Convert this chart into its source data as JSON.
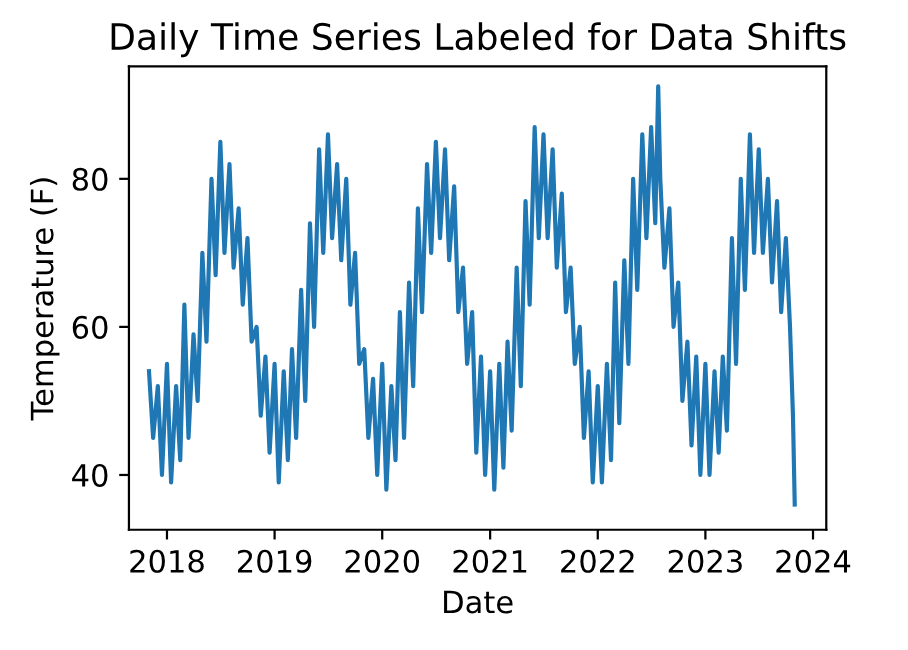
{
  "chart_data": {
    "type": "line",
    "title": "Daily Time Series Labeled for Data Shifts",
    "xlabel": "Date",
    "ylabel": "Temperature (F)",
    "xlim": [
      "2017-08-25",
      "2024-02-15"
    ],
    "ylim": [
      32.6,
      95.2
    ],
    "xticks": [
      "2018",
      "2019",
      "2020",
      "2021",
      "2022",
      "2023",
      "2024"
    ],
    "yticks": [
      40,
      60,
      80
    ],
    "grid": false,
    "series": [
      {
        "color": "#1f77b4",
        "x": [
          "2017-11-01",
          "2017-11-15",
          "2017-12-01",
          "2017-12-15",
          "2018-01-01",
          "2018-01-15",
          "2018-02-01",
          "2018-02-15",
          "2018-03-01",
          "2018-03-15",
          "2018-04-01",
          "2018-04-15",
          "2018-05-01",
          "2018-05-15",
          "2018-06-01",
          "2018-06-15",
          "2018-07-01",
          "2018-07-15",
          "2018-08-01",
          "2018-08-15",
          "2018-09-01",
          "2018-09-15",
          "2018-10-01",
          "2018-10-15",
          "2018-11-01",
          "2018-11-15",
          "2018-12-01",
          "2018-12-15",
          "2019-01-01",
          "2019-01-15",
          "2019-02-01",
          "2019-02-15",
          "2019-03-01",
          "2019-03-15",
          "2019-04-01",
          "2019-04-15",
          "2019-05-01",
          "2019-05-15",
          "2019-06-01",
          "2019-06-15",
          "2019-07-01",
          "2019-07-15",
          "2019-08-01",
          "2019-08-15",
          "2019-09-01",
          "2019-09-15",
          "2019-10-01",
          "2019-10-15",
          "2019-11-01",
          "2019-11-15",
          "2019-12-01",
          "2019-12-15",
          "2020-01-01",
          "2020-01-15",
          "2020-02-01",
          "2020-02-15",
          "2020-03-01",
          "2020-03-15",
          "2020-04-01",
          "2020-04-15",
          "2020-05-01",
          "2020-05-15",
          "2020-06-01",
          "2020-06-15",
          "2020-07-01",
          "2020-07-15",
          "2020-08-01",
          "2020-08-15",
          "2020-09-01",
          "2020-09-15",
          "2020-10-01",
          "2020-10-15",
          "2020-11-01",
          "2020-11-15",
          "2020-12-01",
          "2020-12-15",
          "2021-01-01",
          "2021-01-15",
          "2021-02-01",
          "2021-02-15",
          "2021-03-01",
          "2021-03-15",
          "2021-04-01",
          "2021-04-15",
          "2021-05-01",
          "2021-05-15",
          "2021-06-01",
          "2021-06-15",
          "2021-07-01",
          "2021-07-15",
          "2021-08-01",
          "2021-08-15",
          "2021-09-01",
          "2021-09-15",
          "2021-10-01",
          "2021-10-15",
          "2021-11-01",
          "2021-11-15",
          "2021-12-01",
          "2021-12-15",
          "2022-01-01",
          "2022-01-15",
          "2022-02-01",
          "2022-02-15",
          "2022-03-01",
          "2022-03-15",
          "2022-04-01",
          "2022-04-15",
          "2022-05-01",
          "2022-05-15",
          "2022-06-01",
          "2022-06-15",
          "2022-07-01",
          "2022-07-15",
          "2022-07-25",
          "2022-08-01",
          "2022-08-15",
          "2022-09-01",
          "2022-09-15",
          "2022-10-01",
          "2022-10-15",
          "2022-11-01",
          "2022-11-15",
          "2022-12-01",
          "2022-12-15",
          "2023-01-01",
          "2023-01-15",
          "2023-02-01",
          "2023-02-15",
          "2023-03-01",
          "2023-03-15",
          "2023-04-01",
          "2023-04-15",
          "2023-05-01",
          "2023-05-15",
          "2023-06-01",
          "2023-06-15",
          "2023-07-01",
          "2023-07-15",
          "2023-08-01",
          "2023-08-15",
          "2023-09-01",
          "2023-09-15",
          "2023-10-01",
          "2023-10-15",
          "2023-10-25",
          "2023-10-31"
        ],
        "values": [
          54,
          45,
          52,
          40,
          55,
          39,
          52,
          42,
          63,
          45,
          59,
          50,
          70,
          58,
          80,
          67,
          85,
          70,
          82,
          68,
          76,
          63,
          72,
          58,
          60,
          48,
          56,
          43,
          55,
          39,
          54,
          42,
          57,
          45,
          65,
          50,
          74,
          60,
          84,
          70,
          86,
          72,
          82,
          69,
          80,
          63,
          70,
          55,
          57,
          45,
          53,
          40,
          55,
          38,
          52,
          42,
          62,
          45,
          66,
          52,
          76,
          62,
          82,
          70,
          85,
          72,
          84,
          69,
          79,
          62,
          68,
          55,
          62,
          43,
          56,
          40,
          54,
          38,
          55,
          41,
          58,
          46,
          68,
          52,
          77,
          63,
          87,
          72,
          86,
          72,
          84,
          68,
          78,
          62,
          68,
          55,
          60,
          45,
          54,
          39,
          52,
          39,
          55,
          42,
          66,
          47,
          69,
          55,
          80,
          65,
          86,
          72,
          87,
          74,
          92.5,
          80,
          68,
          76,
          60,
          66,
          50,
          58,
          44,
          56,
          40,
          55,
          40,
          54,
          43,
          56,
          46,
          72,
          55,
          80,
          65,
          86,
          70,
          84,
          70,
          80,
          66,
          77,
          62,
          72,
          60,
          48,
          36
        ]
      }
    ]
  }
}
